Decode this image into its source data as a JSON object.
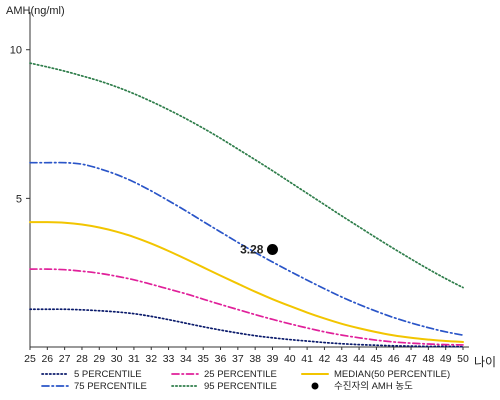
{
  "chart_data": {
    "type": "line",
    "ylabel": "AMH(ng/ml)",
    "xlabel": "나이",
    "xlim": [
      25,
      50
    ],
    "ylim": [
      0,
      11
    ],
    "x_ticks": [
      25,
      26,
      27,
      28,
      29,
      30,
      31,
      32,
      33,
      34,
      35,
      36,
      37,
      38,
      39,
      40,
      41,
      42,
      43,
      44,
      45,
      46,
      47,
      48,
      49,
      50
    ],
    "x_tick_labels": [
      "25",
      "26",
      "27",
      "28",
      "29",
      "30",
      "31",
      "32",
      "33",
      "34",
      "35",
      "36",
      "37",
      "38",
      "39",
      "40",
      "41",
      "42",
      "43",
      "44",
      "45",
      "46",
      "47",
      "48",
      "49",
      "50"
    ],
    "y_ticks": [
      5,
      10
    ],
    "y_tick_labels": [
      "5",
      "10"
    ],
    "grid": false,
    "legend_position": "bottom",
    "series": [
      {
        "name": "5 PERCENTILE",
        "color": "#0a1a6b",
        "dash": "dotted",
        "x": [
          25,
          26,
          27,
          28,
          29,
          30,
          31,
          32,
          33,
          34,
          35,
          36,
          37,
          38,
          39,
          40,
          41,
          42,
          43,
          44,
          45,
          46,
          47,
          48,
          49,
          50
        ],
        "y": [
          1.27,
          1.27,
          1.27,
          1.25,
          1.22,
          1.18,
          1.12,
          1.03,
          0.92,
          0.8,
          0.68,
          0.57,
          0.47,
          0.38,
          0.31,
          0.25,
          0.2,
          0.15,
          0.11,
          0.08,
          0.06,
          0.04,
          0.03,
          0.02,
          0.02,
          0.01
        ]
      },
      {
        "name": "25 PERCENTILE",
        "color": "#e0209a",
        "dash": "dashdot",
        "x": [
          25,
          26,
          27,
          28,
          29,
          30,
          31,
          32,
          33,
          34,
          35,
          36,
          37,
          38,
          39,
          40,
          41,
          42,
          43,
          44,
          45,
          46,
          47,
          48,
          49,
          50
        ],
        "y": [
          2.62,
          2.62,
          2.6,
          2.55,
          2.48,
          2.38,
          2.26,
          2.11,
          1.95,
          1.79,
          1.61,
          1.43,
          1.26,
          1.09,
          0.93,
          0.78,
          0.64,
          0.51,
          0.4,
          0.31,
          0.23,
          0.17,
          0.13,
          0.1,
          0.08,
          0.07
        ]
      },
      {
        "name": "MEDIAN(50 PERCENTILE)",
        "color": "#f2c500",
        "dash": "solid",
        "x": [
          25,
          26,
          27,
          28,
          29,
          30,
          31,
          32,
          33,
          34,
          35,
          36,
          37,
          38,
          39,
          40,
          41,
          42,
          43,
          44,
          45,
          46,
          47,
          48,
          49,
          50
        ],
        "y": [
          4.2,
          4.2,
          4.18,
          4.12,
          4.02,
          3.88,
          3.7,
          3.48,
          3.23,
          2.96,
          2.68,
          2.4,
          2.13,
          1.86,
          1.61,
          1.38,
          1.16,
          0.96,
          0.78,
          0.63,
          0.5,
          0.39,
          0.31,
          0.25,
          0.2,
          0.17
        ]
      },
      {
        "name": "75 PERCENTILE",
        "color": "#2a55c8",
        "dash": "dashdot",
        "x": [
          25,
          26,
          27,
          28,
          29,
          30,
          31,
          32,
          33,
          34,
          35,
          36,
          37,
          38,
          39,
          40,
          41,
          42,
          43,
          44,
          45,
          46,
          47,
          48,
          49,
          50
        ],
        "y": [
          6.2,
          6.2,
          6.2,
          6.15,
          6.0,
          5.8,
          5.55,
          5.25,
          4.92,
          4.58,
          4.22,
          3.87,
          3.52,
          3.18,
          2.86,
          2.55,
          2.25,
          1.96,
          1.68,
          1.43,
          1.2,
          0.99,
          0.81,
          0.65,
          0.51,
          0.4
        ]
      },
      {
        "name": "95 PERCENTILE",
        "color": "#2e7d4a",
        "dash": "dotted",
        "x": [
          25,
          26,
          27,
          28,
          29,
          30,
          31,
          32,
          33,
          34,
          35,
          36,
          37,
          38,
          39,
          40,
          41,
          42,
          43,
          44,
          45,
          46,
          47,
          48,
          49,
          50
        ],
        "y": [
          9.55,
          9.42,
          9.28,
          9.12,
          8.95,
          8.75,
          8.52,
          8.26,
          7.98,
          7.68,
          7.36,
          7.02,
          6.66,
          6.3,
          5.93,
          5.55,
          5.17,
          4.79,
          4.41,
          4.04,
          3.67,
          3.31,
          2.96,
          2.62,
          2.3,
          2.0
        ]
      }
    ],
    "patient_point": {
      "name": "수진자의 AMH 농도",
      "x": 39,
      "y": 3.28,
      "label": "3.28",
      "color": "#000000"
    },
    "legend_items": [
      {
        "name": "5 PERCENTILE",
        "color": "#0a1a6b",
        "dash": "dotted"
      },
      {
        "name": "25 PERCENTILE",
        "color": "#e0209a",
        "dash": "dashdot"
      },
      {
        "name": "MEDIAN(50 PERCENTILE)",
        "color": "#f2c500",
        "dash": "solid"
      },
      {
        "name": "75 PERCENTILE",
        "color": "#2a55c8",
        "dash": "dashdot"
      },
      {
        "name": "95 PERCENTILE",
        "color": "#2e7d4a",
        "dash": "dotted"
      },
      {
        "name": "수진자의 AMH 농도",
        "color": "#000000",
        "dash": "dot"
      }
    ]
  }
}
